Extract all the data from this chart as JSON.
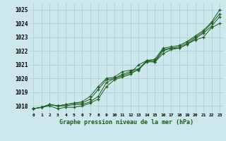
{
  "title": "Graphe pression niveau de la mer (hPa)",
  "bg_color": "#cce8ec",
  "line_color": "#1a5c1a",
  "grid_color": "#aacdd4",
  "x_labels": [
    "0",
    "1",
    "2",
    "3",
    "4",
    "5",
    "6",
    "7",
    "8",
    "9",
    "10",
    "11",
    "12",
    "13",
    "14",
    "15",
    "16",
    "17",
    "18",
    "19",
    "20",
    "21",
    "22",
    "23"
  ],
  "ylim": [
    1017.5,
    1025.5
  ],
  "yticks": [
    1018,
    1019,
    1020,
    1021,
    1022,
    1023,
    1024,
    1025
  ],
  "series": [
    [
      1017.8,
      1017.9,
      1018.0,
      1017.8,
      1017.9,
      1017.9,
      1018.0,
      1018.2,
      1018.5,
      1019.4,
      1019.9,
      1020.1,
      1020.3,
      1020.7,
      1021.2,
      1021.2,
      1021.8,
      1022.1,
      1022.2,
      1022.5,
      1022.8,
      1023.0,
      1023.7,
      1024.0
    ],
    [
      1017.8,
      1017.9,
      1018.1,
      1018.0,
      1018.0,
      1018.1,
      1018.1,
      1018.3,
      1018.7,
      1019.7,
      1020.0,
      1020.2,
      1020.4,
      1021.0,
      1021.3,
      1021.2,
      1022.0,
      1022.2,
      1022.2,
      1022.5,
      1022.9,
      1023.3,
      1023.8,
      1024.5
    ],
    [
      1017.8,
      1017.9,
      1018.1,
      1018.0,
      1018.1,
      1018.2,
      1018.2,
      1018.5,
      1019.2,
      1019.9,
      1020.0,
      1020.3,
      1020.5,
      1020.6,
      1021.3,
      1021.3,
      1022.1,
      1022.2,
      1022.3,
      1022.6,
      1023.0,
      1023.4,
      1024.0,
      1024.7
    ],
    [
      1017.8,
      1017.9,
      1018.1,
      1018.0,
      1018.1,
      1018.2,
      1018.3,
      1018.7,
      1019.4,
      1020.0,
      1020.1,
      1020.5,
      1020.6,
      1020.7,
      1021.3,
      1021.4,
      1022.2,
      1022.3,
      1022.4,
      1022.7,
      1023.1,
      1023.5,
      1024.1,
      1025.0
    ]
  ]
}
